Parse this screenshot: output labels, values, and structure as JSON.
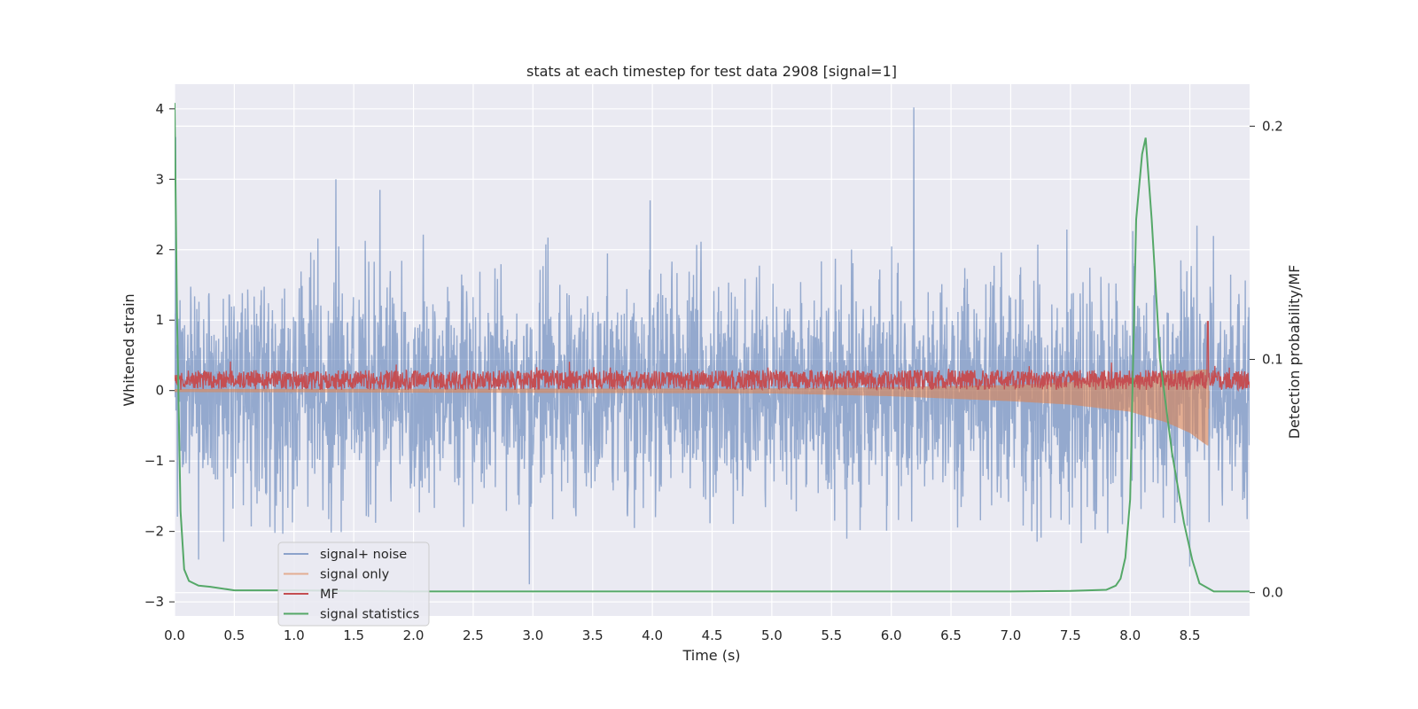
{
  "chart_data": {
    "type": "line",
    "title": "stats at each timestep for test data 2908 [signal=1]",
    "xlabel": "Time (s)",
    "ylabel": "Whitened strain",
    "ylabel_right": "Detection probability/MF",
    "xlim": [
      0,
      9.0
    ],
    "ylim": [
      -3.2,
      4.35
    ],
    "ylim_right": [
      -0.01,
      0.218
    ],
    "x_ticks": [
      "0.0",
      "0.5",
      "1.0",
      "1.5",
      "2.0",
      "2.5",
      "3.0",
      "3.5",
      "4.0",
      "4.5",
      "5.0",
      "5.5",
      "6.0",
      "6.5",
      "7.0",
      "7.5",
      "8.0",
      "8.5"
    ],
    "y_ticks": [
      "−3",
      "−2",
      "−1",
      "0",
      "1",
      "2",
      "3",
      "4"
    ],
    "y_right_ticks": [
      "0.0",
      "0.1",
      "0.2"
    ],
    "grid": true,
    "legend_position": "lower-left",
    "colors": {
      "signal_noise": "#4c72b0",
      "signal_only": "#dd8452",
      "mf": "#c44e52",
      "statistics": "#55a868",
      "plot_bg": "#eaeaf2",
      "grid": "#ffffff"
    },
    "series": [
      {
        "name": "signal+ noise",
        "axis": "left",
        "description_values": {
          "noise_std": 0.8,
          "notable_peaks": [
            [
              1.35,
              3.0
            ],
            [
              1.72,
              2.85
            ],
            [
              3.98,
              2.7
            ],
            [
              6.19,
              4.02
            ],
            [
              0.01,
              3.6
            ]
          ],
          "notable_troughs": [
            [
              2.97,
              -2.75
            ],
            [
              0.2,
              -2.4
            ],
            [
              8.5,
              -2.5
            ]
          ]
        }
      },
      {
        "name": "signal only",
        "axis": "left",
        "envelope": {
          "x": [
            0.0,
            5.0,
            6.0,
            7.0,
            7.5,
            8.0,
            8.3,
            8.5,
            8.62,
            8.65,
            8.66
          ],
          "upper": [
            0.02,
            0.03,
            0.05,
            0.08,
            0.12,
            0.18,
            0.22,
            0.28,
            0.3,
            0.3,
            0.0
          ],
          "lower": [
            -0.02,
            -0.04,
            -0.08,
            -0.15,
            -0.2,
            -0.3,
            -0.45,
            -0.6,
            -0.75,
            -0.78,
            0.0
          ]
        }
      },
      {
        "name": "MF",
        "axis": "left",
        "description_values": {
          "mean": 0.15,
          "amplitude": 0.14,
          "spike": [
            8.65,
            0.98
          ]
        }
      },
      {
        "name": "signal statistics",
        "axis": "right",
        "x": [
          0.0,
          0.02,
          0.05,
          0.08,
          0.12,
          0.2,
          0.3,
          0.5,
          1.0,
          2.0,
          3.0,
          4.0,
          5.0,
          6.0,
          7.0,
          7.5,
          7.8,
          7.88,
          7.92,
          7.96,
          8.0,
          8.05,
          8.1,
          8.13,
          8.18,
          8.25,
          8.35,
          8.45,
          8.52,
          8.58,
          8.7,
          9.0
        ],
        "values": [
          0.21,
          0.12,
          0.035,
          0.01,
          0.005,
          0.003,
          0.0025,
          0.001,
          0.001,
          0.0005,
          0.0005,
          0.0005,
          0.0005,
          0.0005,
          0.0005,
          0.0007,
          0.0012,
          0.003,
          0.006,
          0.015,
          0.04,
          0.16,
          0.188,
          0.195,
          0.16,
          0.1,
          0.06,
          0.03,
          0.014,
          0.004,
          0.0005,
          0.0005
        ]
      }
    ]
  }
}
